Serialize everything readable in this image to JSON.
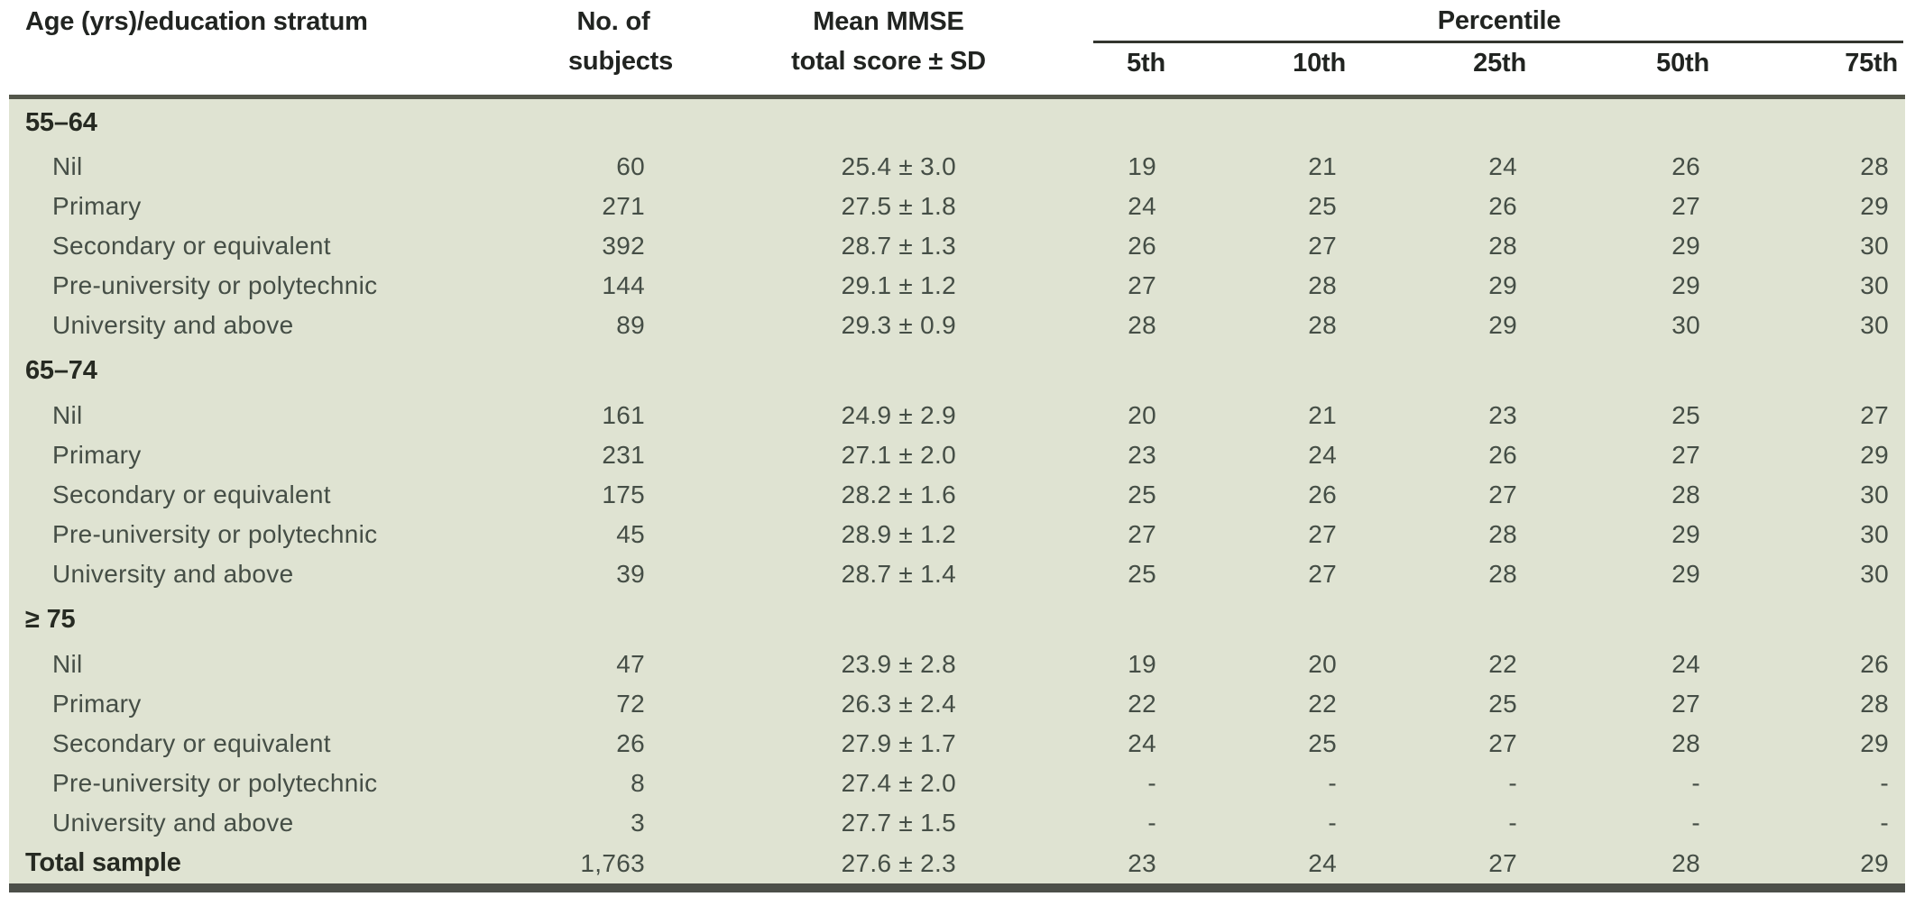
{
  "table": {
    "columns": {
      "stratum": "Age (yrs)/education stratum",
      "n_line1": "No. of",
      "n_line2": "subjects",
      "mmse_line1": "Mean MMSE",
      "mmse_line2": "total score ± SD",
      "percentile_group": "Percentile",
      "percentiles": [
        "5th",
        "10th",
        "25th",
        "50th",
        "75th"
      ]
    },
    "sections": [
      {
        "label": "55–64",
        "rows": [
          {
            "stratum": "Nil",
            "n": "60",
            "mean_sd": "25.4 ± 3.0",
            "percentiles": [
              "19",
              "21",
              "24",
              "26",
              "28"
            ]
          },
          {
            "stratum": "Primary",
            "n": "271",
            "mean_sd": "27.5 ± 1.8",
            "percentiles": [
              "24",
              "25",
              "26",
              "27",
              "29"
            ]
          },
          {
            "stratum": "Secondary or equivalent",
            "n": "392",
            "mean_sd": "28.7 ± 1.3",
            "percentiles": [
              "26",
              "27",
              "28",
              "29",
              "30"
            ]
          },
          {
            "stratum": "Pre-university or polytechnic",
            "n": "144",
            "mean_sd": "29.1 ± 1.2",
            "percentiles": [
              "27",
              "28",
              "29",
              "29",
              "30"
            ]
          },
          {
            "stratum": "University and above",
            "n": "89",
            "mean_sd": "29.3 ± 0.9",
            "percentiles": [
              "28",
              "28",
              "29",
              "30",
              "30"
            ]
          }
        ]
      },
      {
        "label": "65–74",
        "rows": [
          {
            "stratum": "Nil",
            "n": "161",
            "mean_sd": "24.9 ± 2.9",
            "percentiles": [
              "20",
              "21",
              "23",
              "25",
              "27"
            ]
          },
          {
            "stratum": "Primary",
            "n": "231",
            "mean_sd": "27.1 ± 2.0",
            "percentiles": [
              "23",
              "24",
              "26",
              "27",
              "29"
            ]
          },
          {
            "stratum": "Secondary or equivalent",
            "n": "175",
            "mean_sd": "28.2 ± 1.6",
            "percentiles": [
              "25",
              "26",
              "27",
              "28",
              "30"
            ]
          },
          {
            "stratum": "Pre-university or polytechnic",
            "n": "45",
            "mean_sd": "28.9 ± 1.2",
            "percentiles": [
              "27",
              "27",
              "28",
              "29",
              "30"
            ]
          },
          {
            "stratum": "University and above",
            "n": "39",
            "mean_sd": "28.7 ± 1.4",
            "percentiles": [
              "25",
              "27",
              "28",
              "29",
              "30"
            ]
          }
        ]
      },
      {
        "label": "≥ 75",
        "rows": [
          {
            "stratum": "Nil",
            "n": "47",
            "mean_sd": "23.9 ± 2.8",
            "percentiles": [
              "19",
              "20",
              "22",
              "24",
              "26"
            ]
          },
          {
            "stratum": "Primary",
            "n": "72",
            "mean_sd": "26.3 ± 2.4",
            "percentiles": [
              "22",
              "22",
              "25",
              "27",
              "28"
            ]
          },
          {
            "stratum": "Secondary or equivalent",
            "n": "26",
            "mean_sd": "27.9 ± 1.7",
            "percentiles": [
              "24",
              "25",
              "27",
              "28",
              "29"
            ]
          },
          {
            "stratum": "Pre-university or polytechnic",
            "n": "8",
            "mean_sd": "27.4 ± 2.0",
            "percentiles": [
              "-",
              "-",
              "-",
              "-",
              "-"
            ]
          },
          {
            "stratum": "University and above",
            "n": "3",
            "mean_sd": "27.7 ± 1.5",
            "percentiles": [
              "-",
              "-",
              "-",
              "-",
              "-"
            ]
          }
        ]
      }
    ],
    "total": {
      "label": "Total sample",
      "n": "1,763",
      "mean_sd": "27.6 ± 2.3",
      "percentiles": [
        "23",
        "24",
        "27",
        "28",
        "29"
      ]
    }
  },
  "colors": {
    "body_background": "#dfe3d2",
    "header_separator": "#53564a",
    "bottom_rule": "#4c4f49",
    "percentile_rule": "#33352f",
    "header_text": "#212421",
    "body_text": "#454e46",
    "bold_text": "#262a22"
  }
}
